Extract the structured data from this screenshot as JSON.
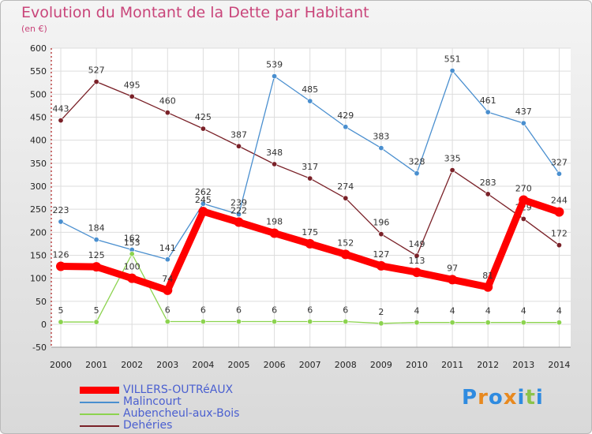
{
  "title": "Evolution du Montant de la Dette par Habitant",
  "unit": "(en €)",
  "logo": {
    "text": "Proxiti",
    "colors": [
      "#2f8be0",
      "#e8891f",
      "#2f8be0",
      "#e8891f",
      "#2f8be0",
      "#8bc34a",
      "#2f8be0"
    ]
  },
  "chart_data": {
    "type": "line",
    "x": [
      "2000",
      "2001",
      "2002",
      "2003",
      "2004",
      "2005",
      "2006",
      "2007",
      "2008",
      "2009",
      "2010",
      "2011",
      "2012",
      "2013",
      "2014"
    ],
    "ylim": [
      -50,
      600
    ],
    "yticks": [
      "-50",
      "0",
      "50",
      "100",
      "150",
      "200",
      "250",
      "300",
      "350",
      "400",
      "450",
      "500",
      "550",
      "600"
    ],
    "grid": true,
    "legend_position": "bottom-left",
    "series": [
      {
        "name": "Dehéries",
        "color": "#7a2128",
        "values": [
          443,
          527,
          495,
          460,
          425,
          387,
          348,
          317,
          274,
          196,
          149,
          335,
          283,
          229,
          172
        ],
        "labels": [
          "443",
          "527",
          "495",
          "460",
          "425",
          "387",
          "348",
          "317",
          "274",
          "196",
          "149",
          "335",
          "283",
          "229",
          "172"
        ]
      },
      {
        "name": "Malincourt",
        "color": "#4a8fcf",
        "values": [
          223,
          184,
          162,
          141,
          262,
          239,
          539,
          485,
          429,
          383,
          328,
          551,
          461,
          437,
          327
        ],
        "labels": [
          "223",
          "184",
          "162",
          "141",
          "262",
          "239",
          "539",
          "485",
          "429",
          "383",
          "328",
          "551",
          "461",
          "437",
          "327"
        ]
      },
      {
        "name": "Aubencheul-aux-Bois",
        "color": "#8cd34f",
        "values": [
          5,
          5,
          153,
          6,
          6,
          6,
          6,
          6,
          6,
          2,
          4,
          4,
          4,
          4,
          4
        ],
        "labels": [
          "5",
          "5",
          "153",
          "6",
          "6",
          "6",
          "6",
          "6",
          "6",
          "2",
          "4",
          "4",
          "4",
          "4",
          "4"
        ]
      },
      {
        "name": "VILLERS-OUTRéAUX",
        "color": "#ff0000",
        "values": [
          126,
          125,
          100,
          74,
          245,
          222,
          198,
          175,
          152,
          127,
          113,
          97,
          81,
          270,
          244
        ],
        "labels": [
          "126",
          "125",
          "100",
          "74",
          "245",
          "222",
          "198",
          "175",
          "152",
          "127",
          "113",
          "97",
          "81",
          "270",
          "244"
        ]
      }
    ],
    "legend": [
      "VILLERS-OUTRéAUX",
      "Malincourt",
      "Aubencheul-aux-Bois",
      "Dehéries"
    ]
  }
}
